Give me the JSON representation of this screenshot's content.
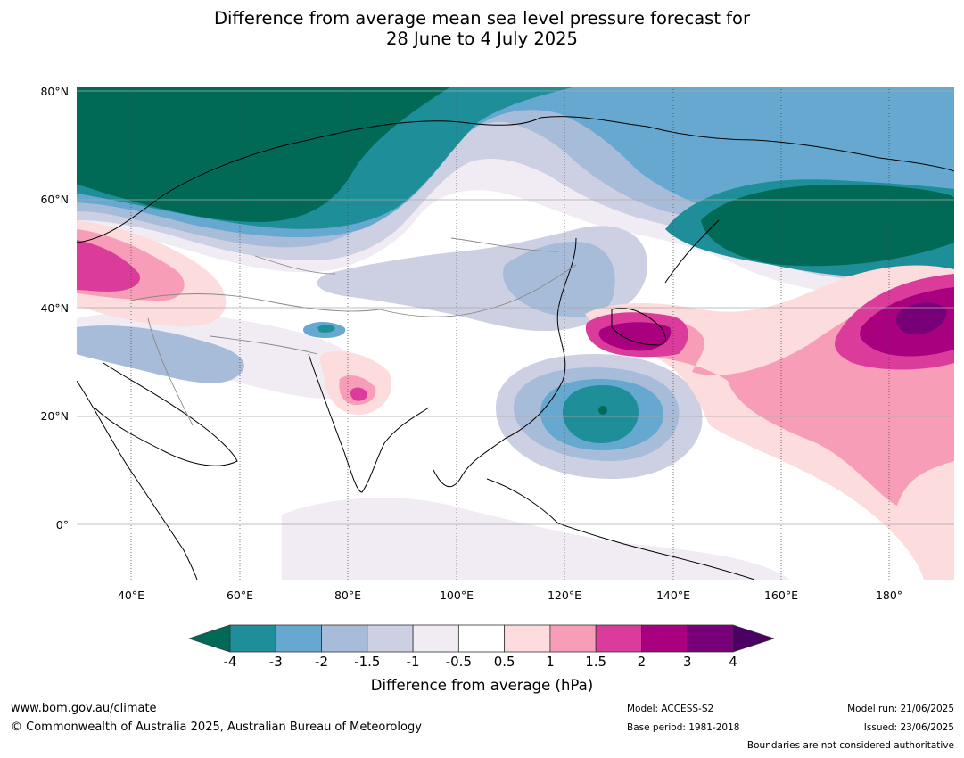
{
  "title": {
    "line1": "Difference from average mean sea level pressure forecast for",
    "line2": "28 June to 4 July 2025"
  },
  "axes": {
    "lat_labels": [
      "80°N",
      "60°N",
      "40°N",
      "20°N",
      "0°"
    ],
    "lon_labels": [
      "40°E",
      "60°E",
      "80°E",
      "100°E",
      "120°E",
      "140°E",
      "160°E",
      "180°"
    ]
  },
  "colorbar": {
    "ticks": [
      "-4",
      "-3",
      "-2",
      "-1.5",
      "-1",
      "-0.5",
      "0.5",
      "1",
      "1.5",
      "2",
      "3",
      "4"
    ],
    "colors": [
      "#006a56",
      "#1e8f99",
      "#66a8d0",
      "#a6bcd9",
      "#cdd0e3",
      "#f1ecf4",
      "#ffffff",
      "#fcdcdc",
      "#f79db8",
      "#db3c9c",
      "#a8007e",
      "#770079",
      "#4c0063"
    ],
    "label": "Difference from average (hPa)"
  },
  "footer": {
    "website": "www.bom.gov.au/climate",
    "copyright": "© Commonwealth of Australia 2025, Australian Bureau of Meteorology",
    "model": "Model: ACCESS-S2",
    "base_period": "Base period: 1981-2018",
    "model_run": "Model run: 21/06/2025",
    "issued": "Issued: 23/06/2025",
    "disclaimer": "Boundaries are not considered authoritative"
  }
}
